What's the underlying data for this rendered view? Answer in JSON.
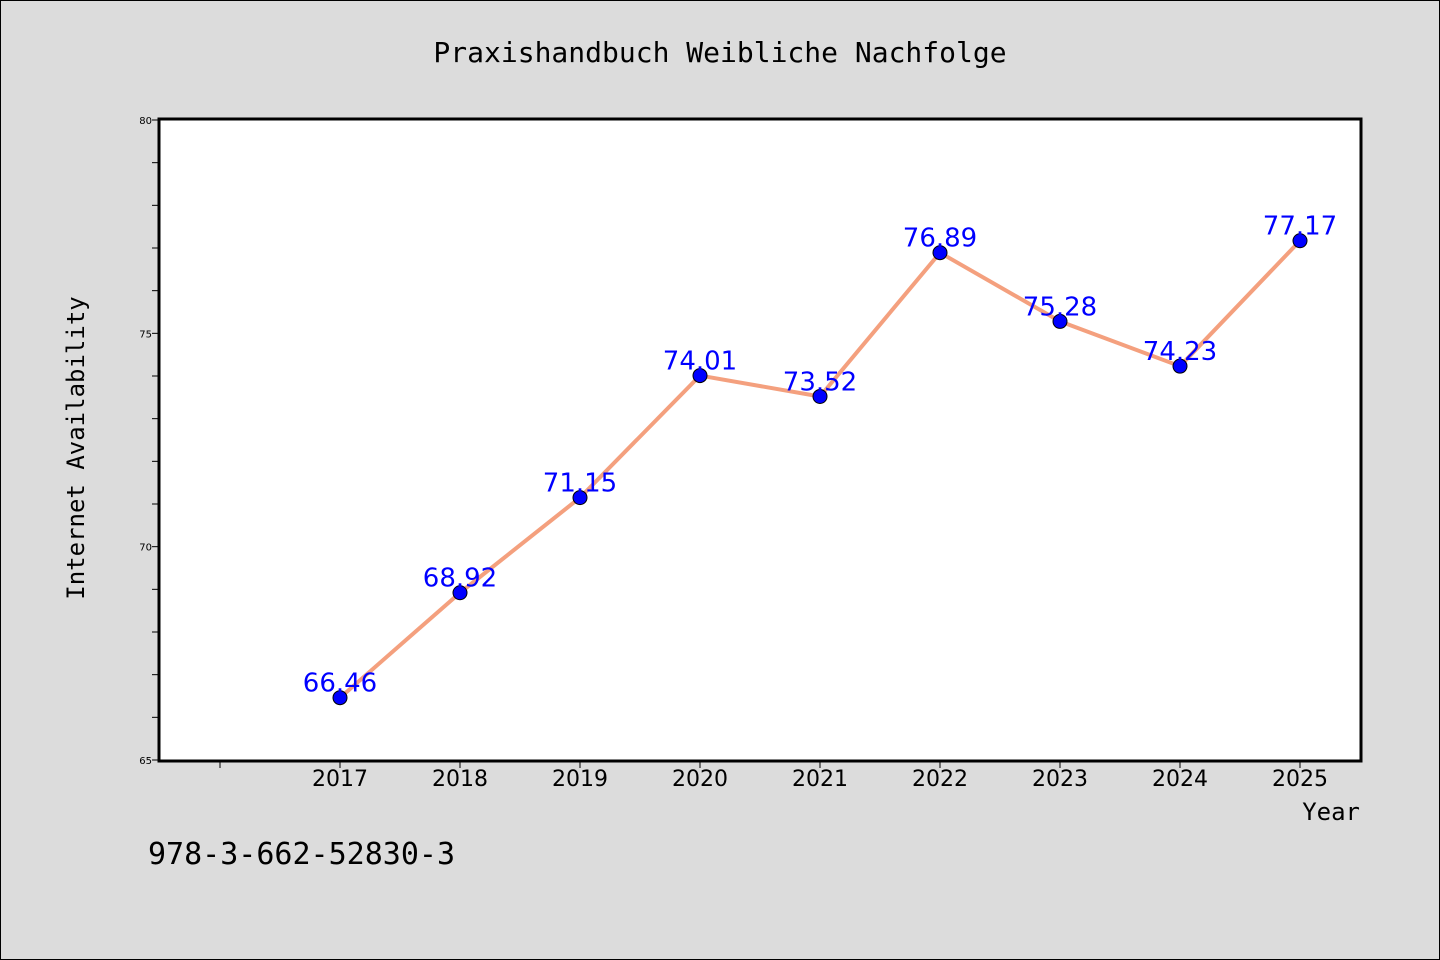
{
  "chart_data": {
    "type": "line",
    "title": "Praxishandbuch Weibliche Nachfolge",
    "xlabel": "Year",
    "ylabel": "Internet Availability",
    "x": [
      "2017",
      "2018",
      "2019",
      "2020",
      "2021",
      "2022",
      "2023",
      "2024",
      "2025"
    ],
    "series": [
      {
        "values": [
          66.46,
          68.92,
          71.15,
          74.01,
          73.52,
          76.89,
          75.28,
          74.23,
          77.17
        ],
        "data_labels": [
          "66.46",
          "68.92",
          "71.15",
          "74.01",
          "73.52",
          "76.89",
          "75.28",
          "74.23",
          "77.17"
        ],
        "line_color": "#f4a07e",
        "marker_color": "#0000ff"
      }
    ],
    "ylim": [
      65,
      80
    ],
    "yticks": [
      "65",
      "70",
      "75",
      "80"
    ],
    "grid": false,
    "legend": "none"
  },
  "footer": {
    "isbn": "978-3-662-52830-3"
  }
}
